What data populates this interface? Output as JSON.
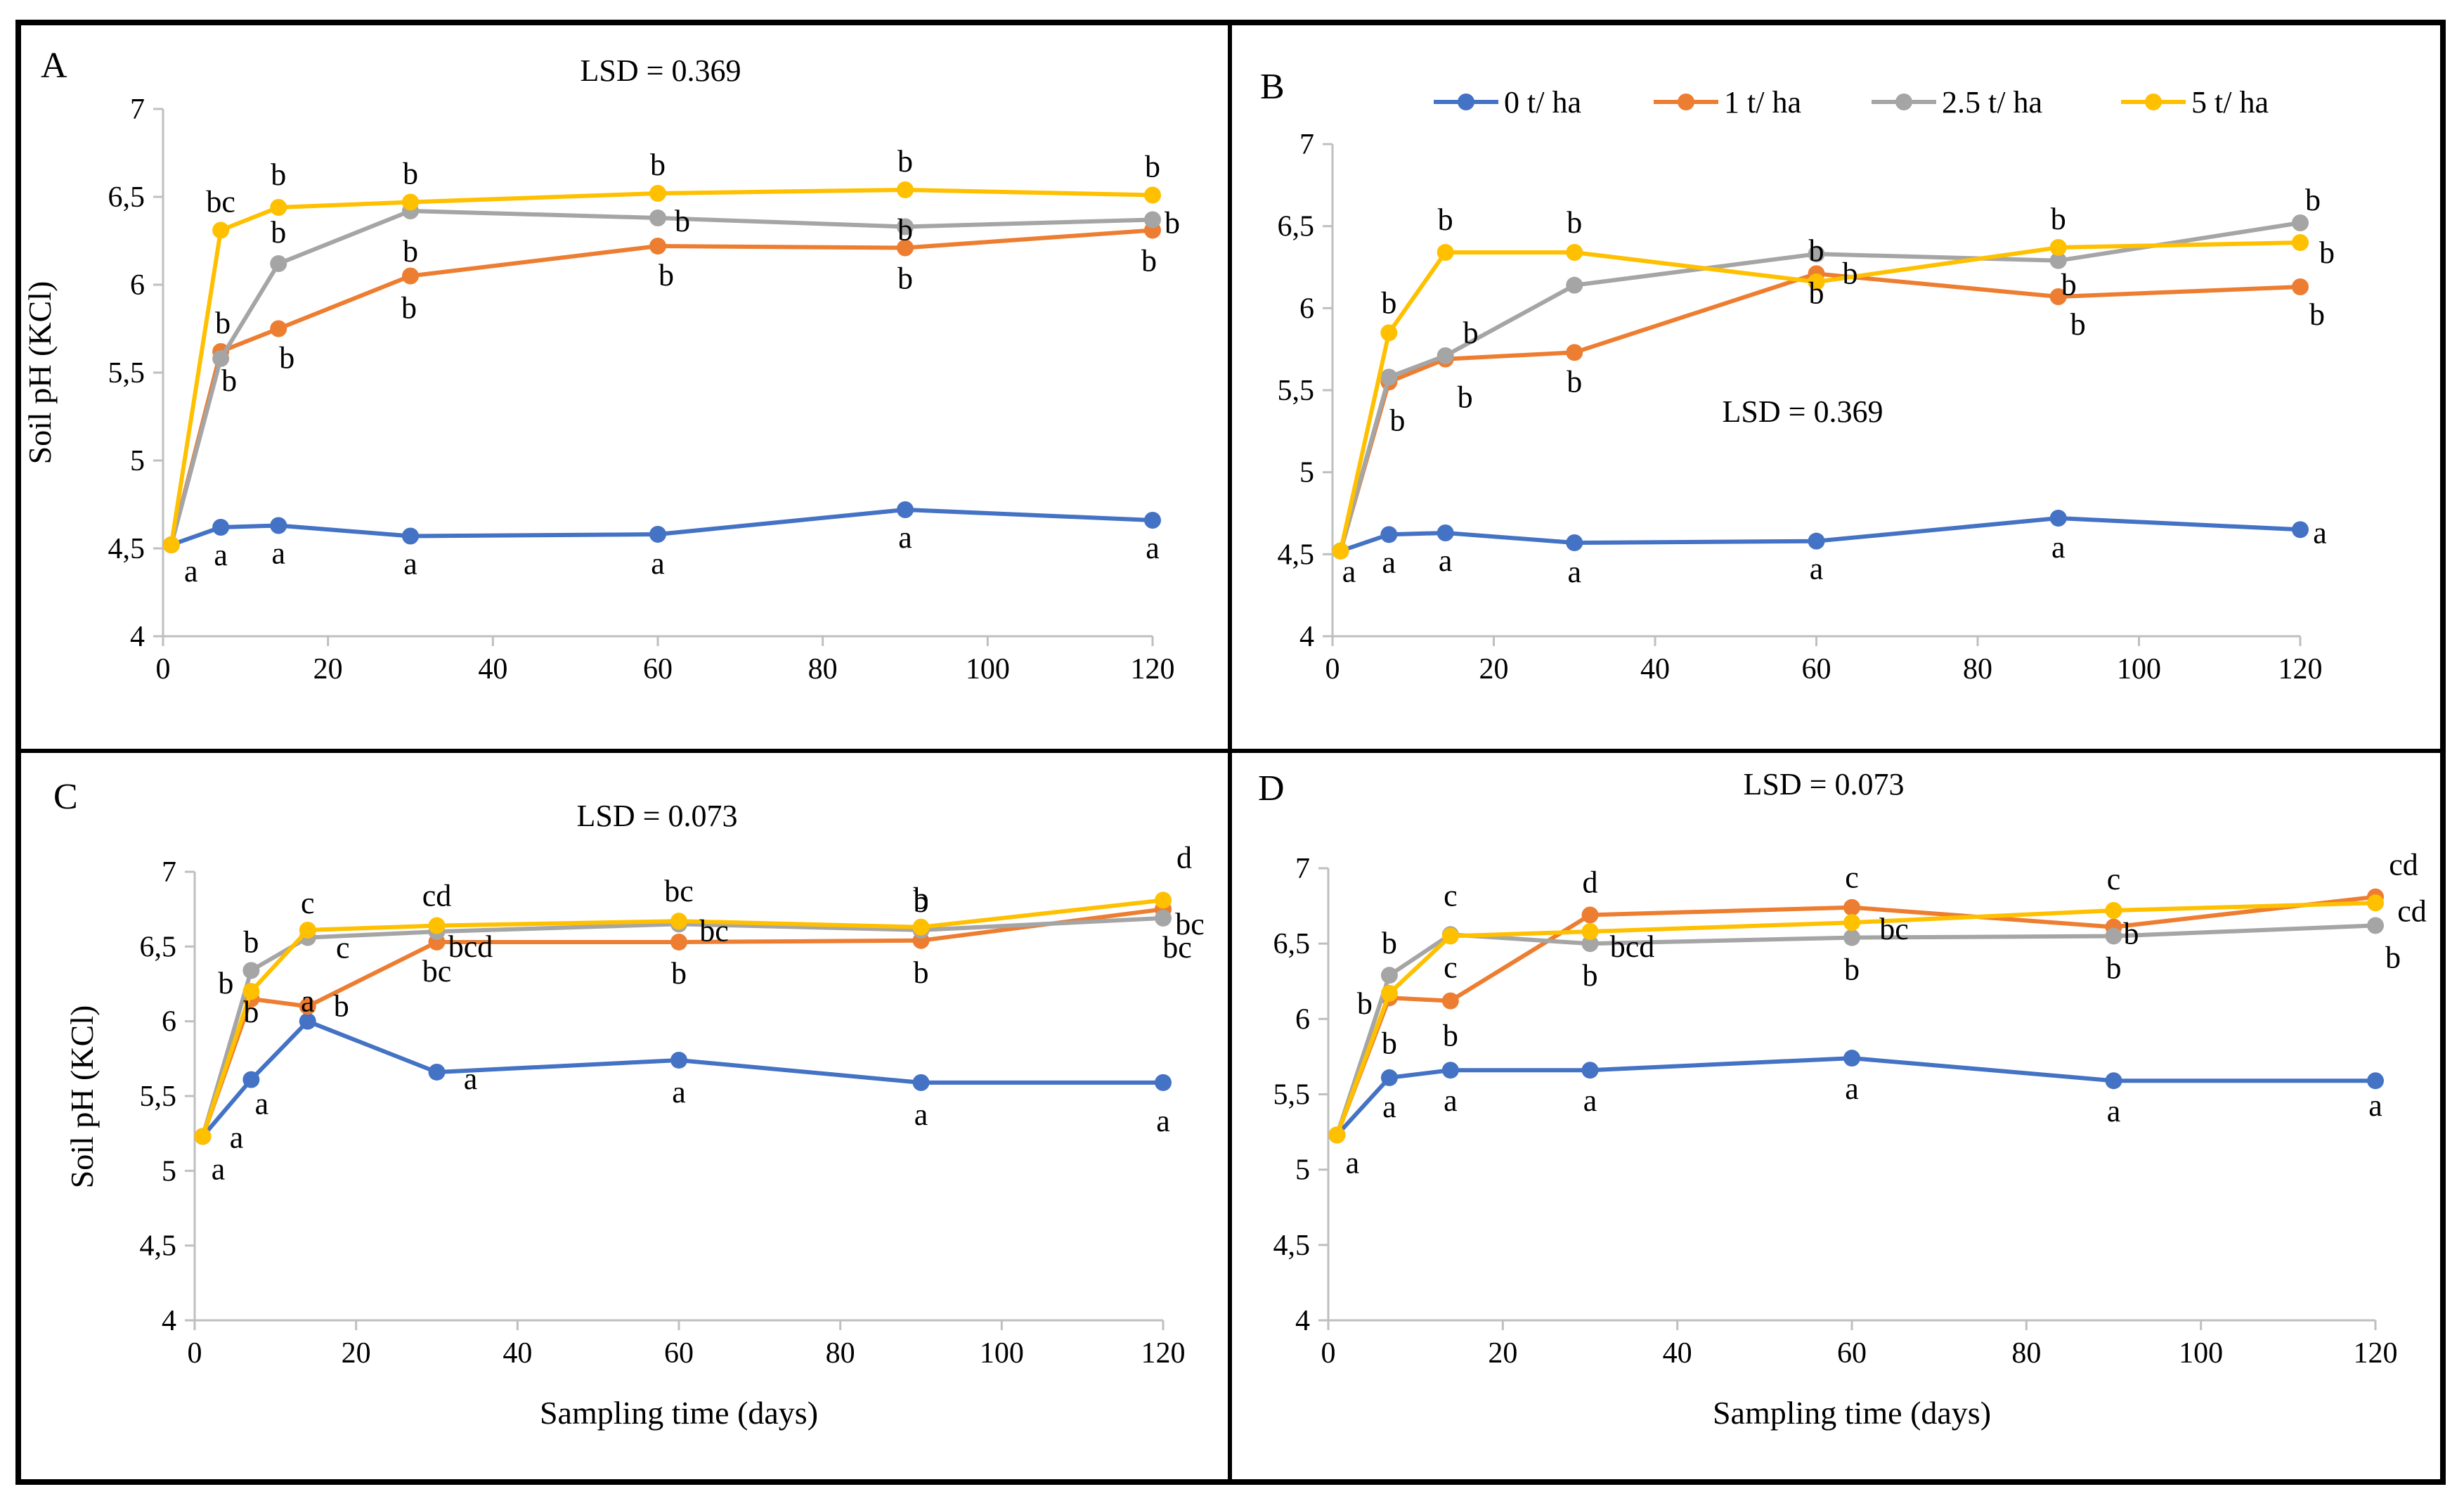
{
  "figure": {
    "legend": [
      {
        "label": "0 t/ ha",
        "color": "#4472C4"
      },
      {
        "label": "1 t/ ha",
        "color": "#ED7D31"
      },
      {
        "label": "2.5 t/ ha",
        "color": "#A5A5A5"
      },
      {
        "label": "5 t/ ha",
        "color": "#FFC000"
      }
    ]
  },
  "chart_data": [
    {
      "type": "line",
      "panel_label": "A",
      "lsd_label": "LSD = 0.369",
      "title": "",
      "xlabel": "",
      "ylabel": "Soil pH (KCl)",
      "xlim": [
        0,
        120
      ],
      "ylim": [
        4,
        7
      ],
      "x_ticks": [
        "0",
        "20",
        "40",
        "60",
        "80",
        "100",
        "120"
      ],
      "y_ticks": [
        "4",
        "4,5",
        "5",
        "5,5",
        "6",
        "6,5",
        "7"
      ],
      "x": [
        1,
        7,
        14,
        30,
        60,
        90,
        120
      ],
      "series": [
        {
          "name": "0 t/ ha",
          "color": "#4472C4",
          "values": [
            4.52,
            4.62,
            4.63,
            4.57,
            4.58,
            4.72,
            4.66
          ],
          "letters": [
            "a",
            "a",
            "a",
            "a",
            "a",
            "a",
            "a"
          ]
        },
        {
          "name": "1 t/ ha",
          "color": "#ED7D31",
          "values": [
            4.52,
            5.62,
            5.75,
            6.05,
            6.22,
            6.21,
            6.31
          ],
          "letters": [
            "",
            "b",
            "b",
            "b",
            "b",
            "b",
            "b"
          ]
        },
        {
          "name": "2.5 t/ ha",
          "color": "#A5A5A5",
          "values": [
            4.52,
            5.58,
            6.12,
            6.42,
            6.38,
            6.33,
            6.37
          ],
          "letters": [
            "",
            "b",
            "b",
            "b",
            "b",
            "b",
            "b"
          ]
        },
        {
          "name": "5 t/ ha",
          "color": "#FFC000",
          "values": [
            4.52,
            6.31,
            6.44,
            6.47,
            6.52,
            6.54,
            6.51
          ],
          "letters": [
            "",
            "bc",
            "b",
            "b",
            "b",
            "b",
            "b"
          ]
        }
      ]
    },
    {
      "type": "line",
      "panel_label": "B",
      "lsd_label": "LSD = 0.369",
      "title": "",
      "xlabel": "",
      "ylabel": "",
      "xlim": [
        0,
        120
      ],
      "ylim": [
        4,
        7
      ],
      "x_ticks": [
        "0",
        "20",
        "40",
        "60",
        "80",
        "100",
        "120"
      ],
      "y_ticks": [
        "4",
        "4,5",
        "5",
        "5,5",
        "6",
        "6,5",
        "7"
      ],
      "x": [
        1,
        7,
        14,
        30,
        60,
        90,
        120
      ],
      "series": [
        {
          "name": "0 t/ ha",
          "color": "#4472C4",
          "values": [
            4.52,
            4.62,
            4.63,
            4.57,
            4.58,
            4.72,
            4.65
          ],
          "letters": [
            "a",
            "a",
            "a",
            "a",
            "a",
            "a",
            "a"
          ]
        },
        {
          "name": "1 t/ ha",
          "color": "#ED7D31",
          "values": [
            4.52,
            5.55,
            5.69,
            5.73,
            6.21,
            6.07,
            6.13
          ],
          "letters": [
            "",
            "b",
            "b",
            "b",
            "b",
            "b",
            "b"
          ]
        },
        {
          "name": "2.5 t/ ha",
          "color": "#A5A5A5",
          "values": [
            4.52,
            5.58,
            5.71,
            6.14,
            6.33,
            6.29,
            6.52
          ],
          "letters": [
            "",
            "",
            "b",
            "",
            "b",
            "b",
            "b"
          ]
        },
        {
          "name": "5 t/ ha",
          "color": "#FFC000",
          "values": [
            4.52,
            5.85,
            6.34,
            6.34,
            6.16,
            6.37,
            6.4
          ],
          "letters": [
            "",
            "b",
            "b",
            "b",
            "b",
            "b",
            "b"
          ]
        }
      ]
    },
    {
      "type": "line",
      "panel_label": "C",
      "lsd_label": "LSD = 0.073",
      "title": "",
      "xlabel": "Sampling time (days)",
      "ylabel": "Soil pH (KCl)",
      "xlim": [
        0,
        120
      ],
      "ylim": [
        4,
        7
      ],
      "x_ticks": [
        "0",
        "20",
        "40",
        "60",
        "80",
        "100",
        "120"
      ],
      "y_ticks": [
        "4",
        "4,5",
        "5",
        "5,5",
        "6",
        "6,5",
        "7"
      ],
      "x": [
        1,
        7,
        14,
        30,
        60,
        90,
        120
      ],
      "series": [
        {
          "name": "0 t/ ha",
          "color": "#4472C4",
          "values": [
            5.23,
            5.61,
            6.0,
            5.66,
            5.74,
            5.59,
            5.59
          ],
          "letters": [
            "a",
            "a",
            "a",
            "a",
            "a",
            "a",
            "a"
          ]
        },
        {
          "name": "1 t/ ha",
          "color": "#ED7D31",
          "values": [
            5.23,
            6.15,
            6.1,
            6.53,
            6.53,
            6.54,
            6.75
          ],
          "letters": [
            "",
            "b",
            "b",
            "bc",
            "b",
            "b",
            "bc"
          ]
        },
        {
          "name": "2.5 t/ ha",
          "color": "#A5A5A5",
          "values": [
            5.23,
            6.34,
            6.56,
            6.6,
            6.65,
            6.61,
            6.69
          ],
          "letters": [
            "a",
            "b",
            "c",
            "bcd",
            "bc",
            "b",
            "bc"
          ]
        },
        {
          "name": "5 t/ ha",
          "color": "#FFC000",
          "values": [
            5.23,
            6.2,
            6.61,
            6.64,
            6.67,
            6.63,
            6.81
          ],
          "letters": [
            "",
            "b",
            "c",
            "cd",
            "bc",
            "b",
            "d"
          ]
        }
      ]
    },
    {
      "type": "line",
      "panel_label": "D",
      "lsd_label": "LSD = 0.073",
      "title": "",
      "xlabel": "Sampling time (days)",
      "ylabel": "",
      "xlim": [
        0,
        120
      ],
      "ylim": [
        4,
        7
      ],
      "x_ticks": [
        "0",
        "20",
        "40",
        "60",
        "80",
        "100",
        "120"
      ],
      "y_ticks": [
        "4",
        "4,5",
        "5",
        "5,5",
        "6",
        "6,5",
        "7"
      ],
      "x": [
        1,
        7,
        14,
        30,
        60,
        90,
        120
      ],
      "series": [
        {
          "name": "0 t/ ha",
          "color": "#4472C4",
          "values": [
            5.23,
            5.61,
            5.66,
            5.66,
            5.74,
            5.59,
            5.59
          ],
          "letters": [
            "a",
            "a",
            "a",
            "a",
            "a",
            "a",
            "a"
          ]
        },
        {
          "name": "1 t/ ha",
          "color": "#ED7D31",
          "values": [
            5.23,
            6.14,
            6.12,
            6.69,
            6.74,
            6.61,
            6.81
          ],
          "letters": [
            "",
            "b",
            "b",
            "d",
            "c",
            "b",
            "cd"
          ]
        },
        {
          "name": "2.5 t/ ha",
          "color": "#A5A5A5",
          "values": [
            5.23,
            6.29,
            6.56,
            6.5,
            6.54,
            6.55,
            6.62
          ],
          "letters": [
            "",
            "b",
            "c",
            "b",
            "b",
            "b",
            "b"
          ]
        },
        {
          "name": "5 t/ ha",
          "color": "#FFC000",
          "values": [
            5.23,
            6.17,
            6.55,
            6.58,
            6.64,
            6.72,
            6.77
          ],
          "letters": [
            "",
            "b",
            "c",
            "bcd",
            "bc",
            "c",
            "cd"
          ]
        }
      ]
    }
  ]
}
